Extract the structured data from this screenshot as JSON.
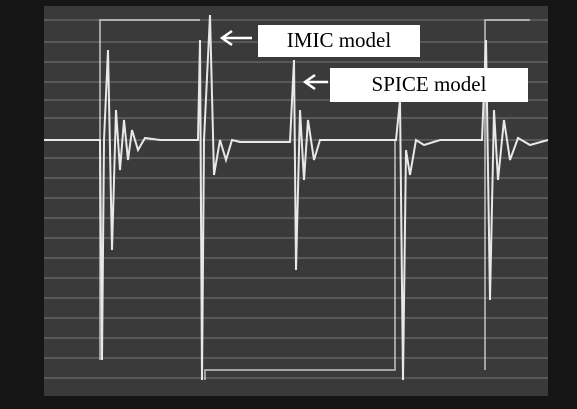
{
  "annotations": {
    "imic": "IMIC model",
    "spice": "SPICE model"
  }
}
